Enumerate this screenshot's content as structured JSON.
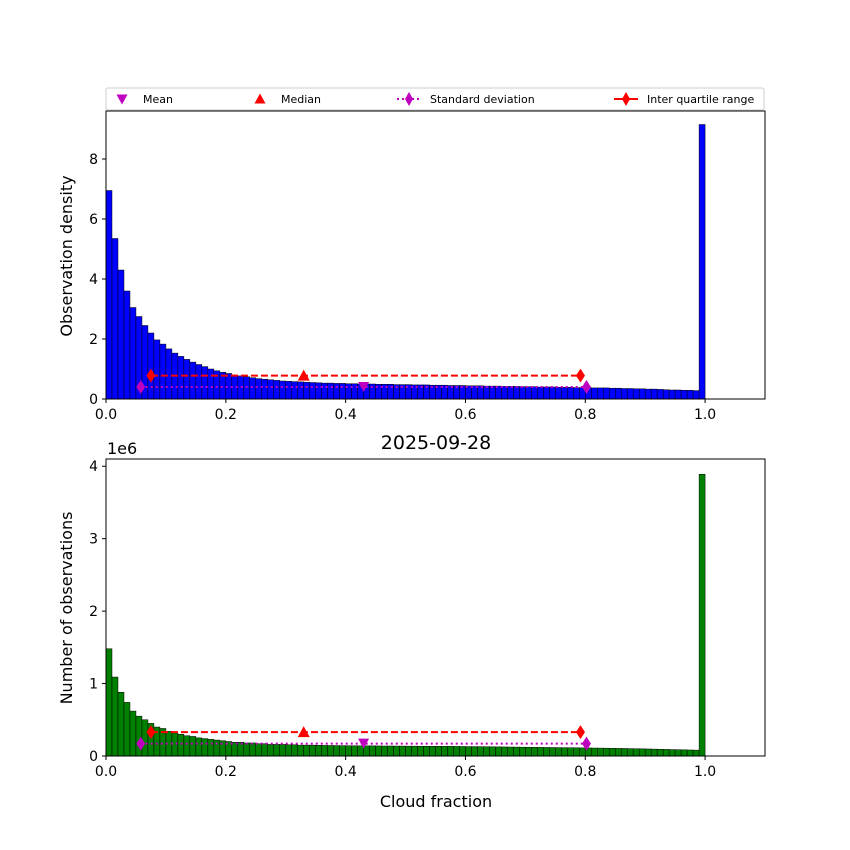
{
  "chart_data": [
    {
      "type": "bar",
      "title": "",
      "xlabel": "",
      "ylabel": "Observation density",
      "xlim": [
        0,
        1.1
      ],
      "ylim": [
        0,
        9.6
      ],
      "xticks": [
        "0.0",
        "0.2",
        "0.4",
        "0.6",
        "0.8",
        "1.0"
      ],
      "yticks": [
        "0",
        "2",
        "4",
        "6",
        "8"
      ],
      "bar_color": "#0000ff",
      "bin_width": 0.01,
      "values": [
        6.95,
        5.35,
        4.3,
        3.6,
        3.05,
        2.75,
        2.45,
        2.2,
        1.97,
        1.83,
        1.67,
        1.53,
        1.42,
        1.32,
        1.23,
        1.15,
        1.08,
        1.0,
        0.94,
        0.89,
        0.85,
        0.8,
        0.77,
        0.74,
        0.71,
        0.68,
        0.66,
        0.64,
        0.62,
        0.6,
        0.59,
        0.58,
        0.57,
        0.56,
        0.55,
        0.54,
        0.53,
        0.53,
        0.52,
        0.52,
        0.51,
        0.51,
        0.5,
        0.5,
        0.5,
        0.49,
        0.49,
        0.49,
        0.48,
        0.48,
        0.48,
        0.47,
        0.47,
        0.47,
        0.46,
        0.46,
        0.46,
        0.45,
        0.45,
        0.45,
        0.44,
        0.44,
        0.44,
        0.43,
        0.43,
        0.43,
        0.42,
        0.42,
        0.42,
        0.41,
        0.41,
        0.41,
        0.4,
        0.4,
        0.4,
        0.39,
        0.39,
        0.39,
        0.38,
        0.38,
        0.38,
        0.37,
        0.37,
        0.37,
        0.36,
        0.36,
        0.35,
        0.35,
        0.34,
        0.34,
        0.33,
        0.33,
        0.32,
        0.31,
        0.3,
        0.3,
        0.29,
        0.29,
        0.28,
        9.15
      ],
      "stats": {
        "mean": {
          "x": 0.43,
          "y": 0.4
        },
        "median": {
          "x": 0.33,
          "y": 0.78
        },
        "std": {
          "x": [
            0.058,
            0.802
          ],
          "y": 0.4
        },
        "iqr": {
          "x": [
            0.075,
            0.792
          ],
          "y": 0.78
        }
      },
      "legend": {
        "placement": "top",
        "entries": [
          "Mean",
          "Median",
          "Standard deviation",
          "Inter quartile range"
        ]
      }
    },
    {
      "type": "bar",
      "title": "2025-09-28",
      "xlabel": "Cloud fraction",
      "ylabel": "Number of observations",
      "offset_label": "1e6",
      "xlim": [
        0,
        1.1
      ],
      "ylim": [
        0,
        4.1
      ],
      "xticks": [
        "0.0",
        "0.2",
        "0.4",
        "0.6",
        "0.8",
        "1.0"
      ],
      "yticks": [
        "0",
        "1",
        "2",
        "3",
        "4"
      ],
      "bar_color": "#008000",
      "bin_width": 0.01,
      "values": [
        1.48,
        1.09,
        0.88,
        0.74,
        0.62,
        0.55,
        0.5,
        0.45,
        0.4,
        0.38,
        0.34,
        0.32,
        0.3,
        0.28,
        0.27,
        0.25,
        0.24,
        0.23,
        0.22,
        0.21,
        0.2,
        0.19,
        0.19,
        0.18,
        0.18,
        0.17,
        0.17,
        0.16,
        0.16,
        0.16,
        0.155,
        0.155,
        0.15,
        0.15,
        0.15,
        0.148,
        0.146,
        0.145,
        0.144,
        0.143,
        0.142,
        0.141,
        0.14,
        0.14,
        0.14,
        0.139,
        0.138,
        0.138,
        0.137,
        0.137,
        0.136,
        0.136,
        0.135,
        0.135,
        0.134,
        0.134,
        0.133,
        0.133,
        0.132,
        0.131,
        0.13,
        0.13,
        0.129,
        0.128,
        0.127,
        0.126,
        0.125,
        0.124,
        0.123,
        0.122,
        0.121,
        0.12,
        0.119,
        0.118,
        0.117,
        0.116,
        0.115,
        0.114,
        0.113,
        0.112,
        0.111,
        0.11,
        0.109,
        0.108,
        0.106,
        0.105,
        0.104,
        0.102,
        0.1,
        0.099,
        0.097,
        0.095,
        0.093,
        0.091,
        0.089,
        0.087,
        0.085,
        0.083,
        0.081,
        3.89
      ],
      "stats": {
        "mean": {
          "x": 0.43,
          "y": 0.17
        },
        "median": {
          "x": 0.33,
          "y": 0.33
        },
        "std": {
          "x": [
            0.058,
            0.802
          ],
          "y": 0.17
        },
        "iqr": {
          "x": [
            0.075,
            0.792
          ],
          "y": 0.33
        }
      }
    }
  ],
  "colors": {
    "mean": "#bf00bf",
    "median": "#ff0000",
    "std": "#bf00bf",
    "iqr": "#ff0000"
  }
}
